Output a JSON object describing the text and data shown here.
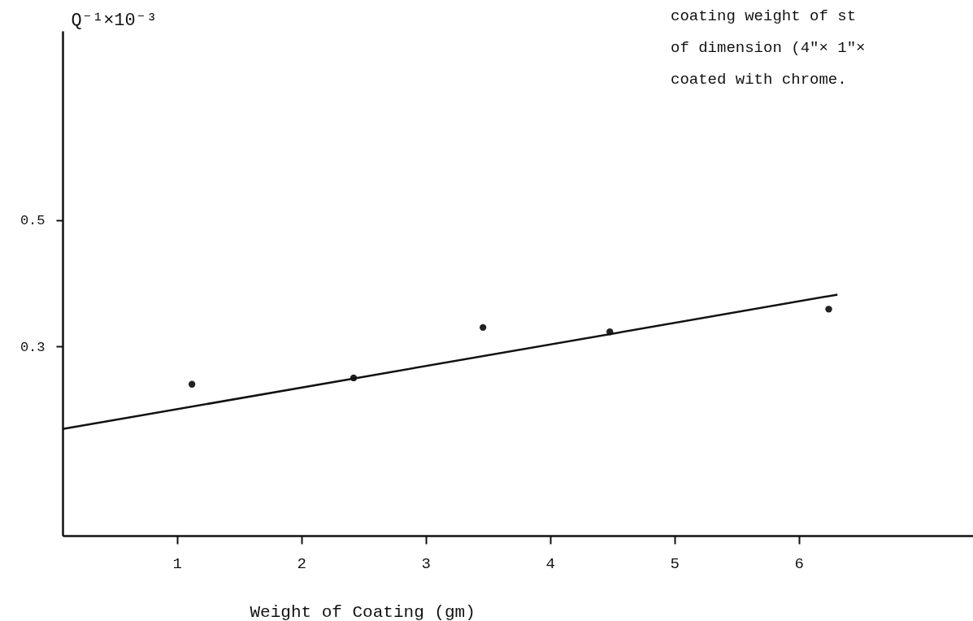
{
  "chart_data": {
    "type": "scatter",
    "xlabel": "Weight of Coating (gm)",
    "ylabel": "Q⁻¹×10⁻³",
    "annotations": [
      "coating weight of st",
      "of dimension (4\"× 1\"×",
      "coated with chrome."
    ],
    "xlim": [
      0.08,
      7.4
    ],
    "xticks": [
      1,
      2,
      3,
      4,
      5,
      6
    ],
    "ylim": [
      0,
      0.8
    ],
    "yticks": [
      0.3,
      0.5
    ],
    "grid": false,
    "marker": "circle",
    "series": [
      {
        "type": "scatter",
        "color": "#222222",
        "x": [
          1.12,
          2.42,
          3.46,
          4.48,
          6.24
        ],
        "values": [
          0.24,
          0.25,
          0.33,
          0.323,
          0.359
        ]
      },
      {
        "type": "line",
        "color": "#111111",
        "x": [
          0.08,
          6.31
        ],
        "values": [
          0.169,
          0.382
        ],
        "marker": "none"
      }
    ]
  }
}
